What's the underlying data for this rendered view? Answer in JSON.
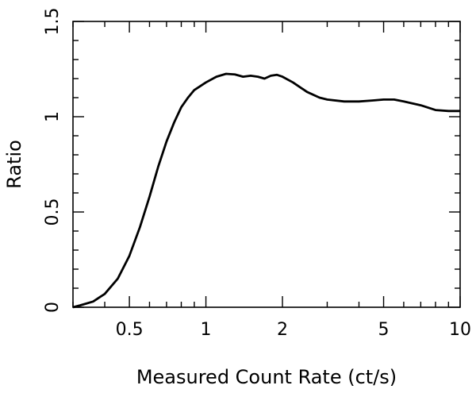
{
  "chart_data": {
    "type": "line",
    "xlabel": "Measured Count Rate (ct/s)",
    "ylabel": "Ratio",
    "x_scale": "log",
    "xlim": [
      0.3,
      10
    ],
    "ylim": [
      0,
      1.5
    ],
    "x_ticks": [
      {
        "value": 0.5,
        "label": "0.5"
      },
      {
        "value": 1,
        "label": "1"
      },
      {
        "value": 2,
        "label": "2"
      },
      {
        "value": 5,
        "label": "5"
      },
      {
        "value": 10,
        "label": "10"
      }
    ],
    "y_ticks": [
      {
        "value": 0,
        "label": "0"
      },
      {
        "value": 0.5,
        "label": "0.5"
      },
      {
        "value": 1,
        "label": "1"
      },
      {
        "value": 1.5,
        "label": "1.5"
      }
    ],
    "grid": false,
    "series": [
      {
        "color": "#000000",
        "x": [
          0.3,
          0.32,
          0.36,
          0.4,
          0.45,
          0.5,
          0.55,
          0.6,
          0.65,
          0.7,
          0.75,
          0.8,
          0.85,
          0.9,
          1.0,
          1.1,
          1.2,
          1.3,
          1.4,
          1.5,
          1.6,
          1.7,
          1.8,
          1.9,
          2.0,
          2.2,
          2.5,
          2.8,
          3.0,
          3.5,
          4.0,
          4.5,
          5.0,
          5.5,
          6.0,
          7.0,
          8.0,
          9.0,
          10.0
        ],
        "y": [
          0.0,
          0.01,
          0.03,
          0.07,
          0.15,
          0.27,
          0.42,
          0.58,
          0.74,
          0.87,
          0.97,
          1.05,
          1.1,
          1.14,
          1.18,
          1.21,
          1.225,
          1.222,
          1.21,
          1.215,
          1.21,
          1.2,
          1.215,
          1.22,
          1.21,
          1.18,
          1.13,
          1.1,
          1.09,
          1.08,
          1.08,
          1.085,
          1.09,
          1.09,
          1.08,
          1.06,
          1.035,
          1.03,
          1.03
        ]
      }
    ]
  }
}
